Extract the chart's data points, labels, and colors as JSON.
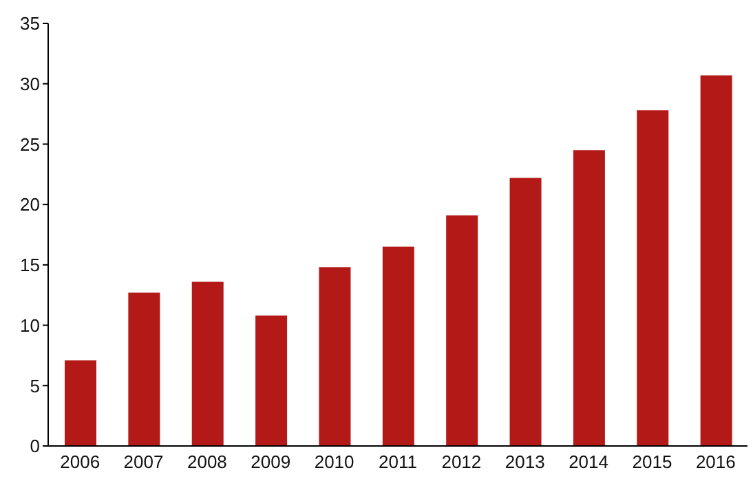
{
  "chart_data": {
    "type": "bar",
    "categories": [
      "2006",
      "2007",
      "2008",
      "2009",
      "2010",
      "2011",
      "2012",
      "2013",
      "2014",
      "2015",
      "2016"
    ],
    "values": [
      7.1,
      12.7,
      13.6,
      10.8,
      14.8,
      16.5,
      19.1,
      22.2,
      24.5,
      27.8,
      30.7
    ],
    "color": "#b31a17",
    "ylim": [
      0,
      35
    ],
    "yticks": [
      0,
      5,
      10,
      15,
      20,
      25,
      30,
      35
    ],
    "grid": false
  }
}
